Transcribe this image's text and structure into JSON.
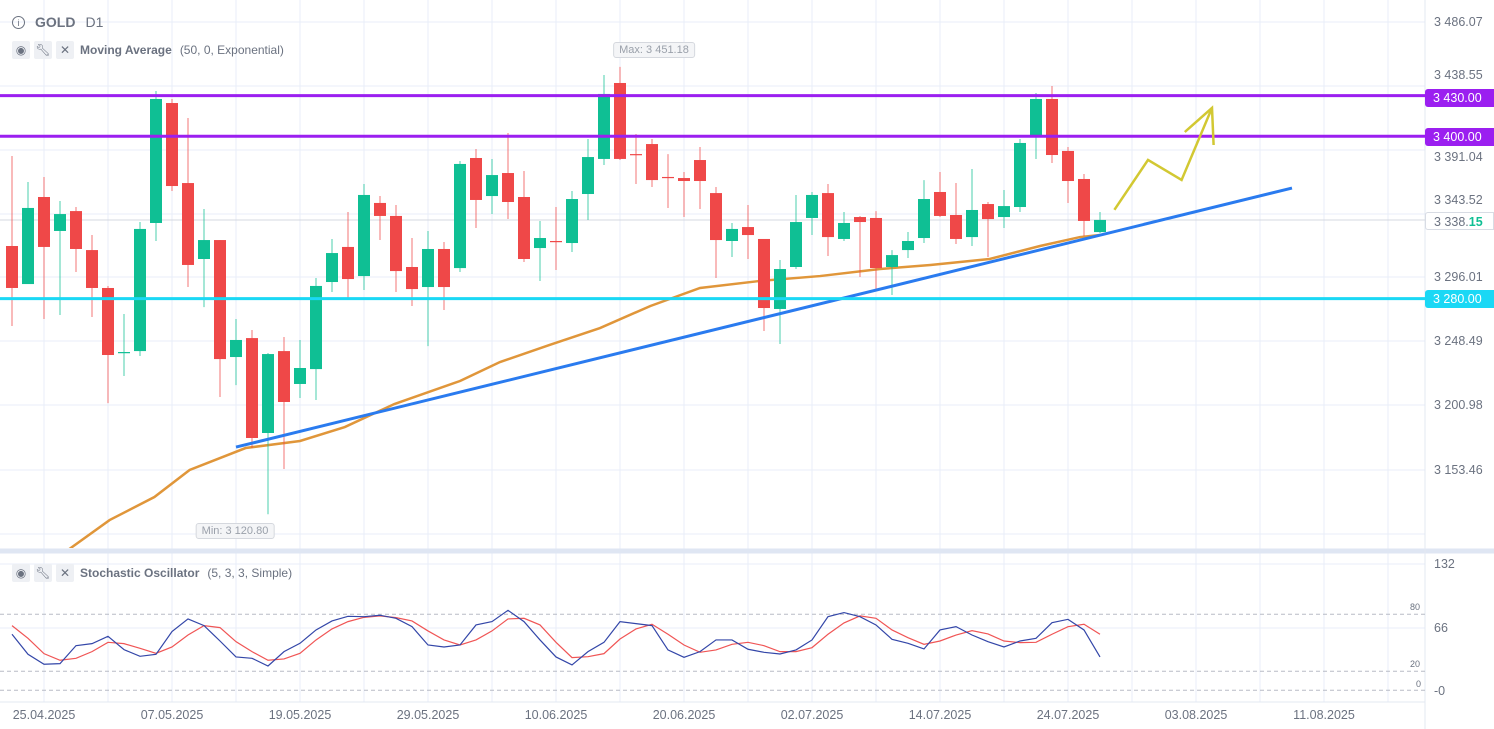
{
  "header": {
    "symbol": "GOLD",
    "timeframe": "D1"
  },
  "indicators": [
    {
      "name": "Moving Average",
      "params": "(50, 0, Exponential)"
    },
    {
      "name": "Stochastic Oscillator",
      "params": "(5, 3, 3, Simple)"
    }
  ],
  "price_axis": [
    "3 486.07",
    "3 438.55",
    "3 391.04",
    "3 343.52",
    "3 296.01",
    "3 248.49",
    "3 200.98",
    "3 153.46"
  ],
  "osc_axis": [
    "132",
    "66",
    "-0"
  ],
  "osc_levels": [
    "80",
    "20",
    "0"
  ],
  "date_axis": [
    "25.04.2025",
    "07.05.2025",
    "19.05.2025",
    "29.05.2025",
    "10.06.2025",
    "20.06.2025",
    "02.07.2025",
    "14.07.2025",
    "24.07.2025",
    "03.08.2025",
    "11.08.2025"
  ],
  "badges": {
    "resistance_high": "3 430.00",
    "resistance_low": "3 400.00",
    "last_price_int": "3 338.",
    "last_price_dec": "15",
    "support": "3 280.00"
  },
  "extremes": {
    "max": "Max: 3 451.18",
    "min": "Min: 3 120.80"
  },
  "colors": {
    "up": "#0fbf94",
    "down": "#ef4848",
    "resistance": "#9b1ff0",
    "support": "#1ad8f5",
    "trendline": "#2a7bef",
    "ema": "#e0963a",
    "forecast": "#d2c832",
    "stoch_k": "#3346a8",
    "stoch_d": "#f05555"
  },
  "chart_data": {
    "type": "candlestick",
    "title": "GOLD D1",
    "ylim": [
      3105.95,
      3486.07
    ],
    "ohlc": [
      [
        3318.9,
        3385.4,
        3259.8,
        3287.9
      ],
      [
        3290.8,
        3366.2,
        3290.8,
        3347.0
      ],
      [
        3355.1,
        3369.9,
        3265.0,
        3318.2
      ],
      [
        3330.0,
        3352.1,
        3267.9,
        3342.5
      ],
      [
        3344.7,
        3347.7,
        3299.7,
        3316.7
      ],
      [
        3315.9,
        3327.0,
        3266.5,
        3287.9
      ],
      [
        3287.9,
        3289.4,
        3202.9,
        3238.4
      ],
      [
        3239.9,
        3268.7,
        3222.9,
        3240.6
      ],
      [
        3241.3,
        3336.6,
        3237.7,
        3331.5
      ],
      [
        3335.9,
        3433.4,
        3322.6,
        3427.5
      ],
      [
        3424.5,
        3427.5,
        3359.5,
        3363.2
      ],
      [
        3365.4,
        3413.4,
        3288.6,
        3304.9
      ],
      [
        3309.3,
        3346.2,
        3273.8,
        3323.3
      ],
      [
        3323.3,
        3323.3,
        3207.4,
        3235.4
      ],
      [
        3236.9,
        3265.0,
        3216.2,
        3249.5
      ],
      [
        3250.9,
        3256.9,
        3169.7,
        3177.1
      ],
      [
        3180.8,
        3239.9,
        3120.8,
        3239.1
      ],
      [
        3241.3,
        3251.7,
        3154.2,
        3203.7
      ],
      [
        3217.0,
        3249.5,
        3206.6,
        3228.8
      ],
      [
        3228.0,
        3295.3,
        3205.2,
        3289.4
      ],
      [
        3292.3,
        3324.1,
        3284.9,
        3313.7
      ],
      [
        3318.2,
        3344.0,
        3280.5,
        3294.5
      ],
      [
        3296.7,
        3364.7,
        3286.4,
        3356.6
      ],
      [
        3350.7,
        3355.8,
        3323.3,
        3341.1
      ],
      [
        3341.1,
        3349.2,
        3284.9,
        3300.4
      ],
      [
        3303.4,
        3324.8,
        3274.6,
        3287.1
      ],
      [
        3288.6,
        3330.0,
        3245.0,
        3316.7
      ],
      [
        3316.7,
        3321.9,
        3271.6,
        3288.6
      ],
      [
        3302.6,
        3381.7,
        3299.7,
        3379.5
      ],
      [
        3383.9,
        3390.5,
        3332.2,
        3352.9
      ],
      [
        3355.8,
        3383.2,
        3342.5,
        3371.3
      ],
      [
        3372.8,
        3402.4,
        3338.8,
        3351.4
      ],
      [
        3355.1,
        3374.3,
        3307.1,
        3309.3
      ],
      [
        3317.4,
        3337.4,
        3293.1,
        3324.8
      ],
      [
        3322.6,
        3347.7,
        3301.2,
        3321.9
      ],
      [
        3321.1,
        3359.5,
        3314.5,
        3353.6
      ],
      [
        3357.3,
        3397.9,
        3338.1,
        3384.6
      ],
      [
        3383.2,
        3445.2,
        3378.7,
        3431.2
      ],
      [
        3439.3,
        3451.18,
        3382.4,
        3383.2
      ],
      [
        3386.8,
        3401.6,
        3364.7,
        3386.1
      ],
      [
        3394.2,
        3397.9,
        3362.5,
        3367.6
      ],
      [
        3369.9,
        3386.8,
        3347.0,
        3369.1
      ],
      [
        3369.1,
        3373.6,
        3340.3,
        3366.9
      ],
      [
        3382.4,
        3392.0,
        3346.2,
        3366.9
      ],
      [
        3358.0,
        3362.5,
        3295.3,
        3323.3
      ],
      [
        3322.6,
        3335.9,
        3310.8,
        3331.5
      ],
      [
        3332.9,
        3349.2,
        3309.3,
        3327.0
      ],
      [
        3324.1,
        3324.1,
        3256.1,
        3273.1
      ],
      [
        3272.4,
        3308.6,
        3246.5,
        3301.9
      ],
      [
        3303.4,
        3356.6,
        3301.9,
        3336.6
      ],
      [
        3339.6,
        3358.8,
        3327.0,
        3356.6
      ],
      [
        3358.0,
        3364.7,
        3311.5,
        3325.5
      ],
      [
        3324.1,
        3344.0,
        3322.6,
        3335.9
      ],
      [
        3340.3,
        3341.1,
        3296.0,
        3336.6
      ],
      [
        3339.6,
        3344.7,
        3286.4,
        3302.6
      ],
      [
        3303.4,
        3315.9,
        3282.7,
        3312.2
      ],
      [
        3315.9,
        3329.2,
        3310.0,
        3322.6
      ],
      [
        3324.8,
        3367.6,
        3321.1,
        3353.6
      ],
      [
        3358.8,
        3373.6,
        3340.3,
        3341.1
      ],
      [
        3341.8,
        3365.4,
        3320.4,
        3324.1
      ],
      [
        3325.5,
        3375.8,
        3318.9,
        3345.5
      ],
      [
        3349.9,
        3351.4,
        3310.8,
        3338.8
      ],
      [
        3340.3,
        3360.3,
        3332.2,
        3348.4
      ],
      [
        3347.7,
        3397.9,
        3344.0,
        3395.0
      ],
      [
        3400.1,
        3431.9,
        3383.2,
        3427.5
      ],
      [
        3427.5,
        3437.1,
        3380.2,
        3386.1
      ],
      [
        3389.1,
        3392.0,
        3350.7,
        3366.9
      ],
      [
        3368.4,
        3372.1,
        3326.3,
        3337.4
      ],
      [
        3329.2,
        3344.0,
        3328.5,
        3338.15
      ]
    ],
    "ema50": [
      [
        3.5,
        3094.4
      ],
      [
        6.1,
        3116.5
      ],
      [
        8.9,
        3133.5
      ],
      [
        11.1,
        3153.5
      ],
      [
        14.6,
        3169.7
      ],
      [
        18,
        3174.9
      ],
      [
        20.8,
        3185.2
      ],
      [
        23.9,
        3202.2
      ],
      [
        28,
        3219.2
      ],
      [
        30.5,
        3233.2
      ],
      [
        33.6,
        3245.8
      ],
      [
        36.75,
        3258.3
      ],
      [
        39.9,
        3274.6
      ],
      [
        43,
        3287.9
      ],
      [
        46.75,
        3293.1
      ],
      [
        50.5,
        3296.7
      ],
      [
        54.25,
        3301.9
      ],
      [
        57.4,
        3304.9
      ],
      [
        61.1,
        3309.3
      ],
      [
        64.25,
        3318.9
      ],
      [
        66.75,
        3325.5
      ],
      [
        68,
        3327.0
      ]
    ],
    "horizontal_levels": [
      3430.0,
      3400.0,
      3280.0
    ],
    "last_price": 3338.15,
    "trendline": [
      [
        14,
        3170.4
      ],
      [
        80,
        3361.7
      ]
    ],
    "forecast_path": [
      [
        68.9,
        3345.6
      ],
      [
        71,
        3382.5
      ],
      [
        73.1,
        3367.7
      ],
      [
        75,
        3420.9
      ]
    ],
    "forecast_arrowhead": [
      [
        73.3,
        3403.1
      ],
      [
        75,
        3420.9
      ],
      [
        75.1,
        3393.5
      ]
    ],
    "stochastic": {
      "ylim": [
        0,
        132
      ],
      "levels": [
        80,
        20,
        0
      ],
      "k": [
        59.0,
        37.9,
        27.4,
        28.1,
        47.0,
        49.1,
        56.8,
        42.8,
        35.8,
        37.9,
        61.8,
        75.1,
        68.1,
        51.9,
        35.1,
        33.7,
        25.6,
        40.7,
        49.5,
        63.5,
        73.0,
        77.9,
        77.5,
        79.0,
        75.8,
        67.0,
        47.7,
        45.6,
        47.7,
        68.8,
        72.3,
        84.2,
        72.3,
        53.0,
        35.1,
        26.7,
        40.7,
        50.5,
        72.3,
        70.2,
        68.1,
        42.5,
        34.7,
        40.7,
        53.0,
        53.0,
        43.2,
        40.0,
        38.2,
        42.5,
        53.0,
        77.5,
        81.8,
        77.5,
        68.8,
        53.7,
        49.5,
        43.5,
        63.5,
        67.0,
        58.2,
        51.2,
        45.6,
        51.9,
        54.7,
        71.2,
        74.7,
        63.5,
        35.1
      ],
      "d": [
        68.1,
        54.7,
        38.6,
        31.6,
        33.7,
        40.7,
        50.5,
        49.1,
        44.2,
        38.9,
        45.6,
        58.2,
        68.1,
        66.0,
        51.2,
        40.7,
        31.6,
        33.0,
        38.9,
        53.0,
        64.6,
        72.3,
        76.8,
        78.3,
        76.5,
        73.0,
        62.5,
        53.0,
        47.7,
        53.0,
        62.5,
        75.1,
        75.8,
        68.8,
        50.5,
        34.4,
        35.4,
        38.6,
        54.0,
        64.6,
        69.5,
        59.0,
        47.7,
        40.0,
        42.5,
        48.4,
        50.5,
        47.0,
        40.7,
        40.7,
        44.9,
        59.0,
        70.9,
        78.3,
        75.8,
        63.5,
        55.4,
        48.4,
        51.9,
        58.2,
        62.8,
        59.3,
        51.9,
        50.2,
        50.5,
        59.0,
        67.0,
        69.5,
        59.0
      ]
    }
  }
}
